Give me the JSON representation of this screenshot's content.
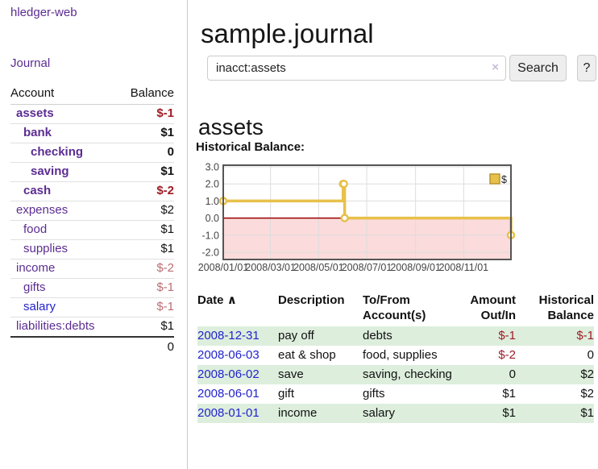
{
  "app": {
    "brand": "hledger-web"
  },
  "sidebar": {
    "journal_link": "Journal",
    "accounts_header": {
      "account": "Account",
      "balance": "Balance"
    },
    "accounts": [
      {
        "name": "assets",
        "indent": 1,
        "bold": true,
        "balance": "$-1",
        "balance_style": "neg-strong"
      },
      {
        "name": "bank",
        "indent": 2,
        "bold": true,
        "balance": "$1",
        "balance_style": "pos"
      },
      {
        "name": "checking",
        "indent": 3,
        "bold": true,
        "balance": "0",
        "balance_style": "pos"
      },
      {
        "name": "saving",
        "indent": 3,
        "bold": true,
        "balance": "$1",
        "balance_style": "pos"
      },
      {
        "name": "cash",
        "indent": 2,
        "bold": true,
        "balance": "$-2",
        "balance_style": "neg-strong"
      },
      {
        "name": "expenses",
        "indent": 1,
        "bold": false,
        "balance": "$2",
        "balance_style": "pos"
      },
      {
        "name": "food",
        "indent": 2,
        "bold": false,
        "balance": "$1",
        "balance_style": "pos"
      },
      {
        "name": "supplies",
        "indent": 2,
        "bold": false,
        "balance": "$1",
        "balance_style": "pos"
      },
      {
        "name": "income",
        "indent": 1,
        "bold": false,
        "balance": "$-2",
        "balance_style": "neg-soft"
      },
      {
        "name": "gifts",
        "indent": 2,
        "bold": false,
        "balance": "$-1",
        "balance_style": "neg-soft"
      },
      {
        "name": "salary",
        "indent": 2,
        "bold": false,
        "balance": "$-1",
        "balance_style": "neg-soft",
        "link_color": "blue"
      },
      {
        "name": "liabilities:debts",
        "indent": 1,
        "bold": false,
        "balance": "$1",
        "balance_style": "pos"
      }
    ],
    "total": "0"
  },
  "header": {
    "title": "sample.journal"
  },
  "search": {
    "value": "inacct:assets",
    "clear_icon": "×",
    "button_label": "Search",
    "help_label": "?"
  },
  "account_page": {
    "heading": "assets",
    "chart_label": "Historical Balance:"
  },
  "chart_data": {
    "type": "line",
    "title": "Historical Balance",
    "line_style": "step-after",
    "series": [
      {
        "name": "$",
        "x": [
          "2008-01-01",
          "2008-06-01",
          "2008-06-02",
          "2008-06-03",
          "2008-12-31"
        ],
        "values": [
          1,
          2,
          2,
          0,
          -1
        ]
      }
    ],
    "x_range": [
      "2008-01-01",
      "2008-12-31"
    ],
    "x_tick_labels": [
      "2008/01/01",
      "2008/03/01",
      "2008/05/01",
      "2008/07/01",
      "2008/09/01",
      "2008/11/01"
    ],
    "y_ticks": [
      "3.0",
      "2.0",
      "1.0",
      "0.0",
      "-1.0",
      "-2.0"
    ],
    "ylim": [
      -2,
      3
    ],
    "grid": true,
    "legend": "$",
    "legend_position": "top-right",
    "negative_region_shaded": true
  },
  "register_table": {
    "headers": [
      "Date",
      "Description",
      "To/From Account(s)",
      "Amount Out/In",
      "Historical Balance"
    ],
    "sort_icon": "∧",
    "rows": [
      {
        "date": "2008-12-31",
        "description": "pay off",
        "accounts": "debts",
        "amount": "$-1",
        "amount_neg": true,
        "balance": "$-1",
        "balance_neg": true,
        "stripe": true
      },
      {
        "date": "2008-06-03",
        "description": "eat & shop",
        "accounts": "food, supplies",
        "amount": "$-2",
        "amount_neg": true,
        "balance": "0",
        "balance_neg": false,
        "stripe": false
      },
      {
        "date": "2008-06-02",
        "description": "save",
        "accounts": "saving, checking",
        "amount": "0",
        "amount_neg": false,
        "balance": "$2",
        "balance_neg": false,
        "stripe": true
      },
      {
        "date": "2008-06-01",
        "description": "gift",
        "accounts": "gifts",
        "amount": "$1",
        "amount_neg": false,
        "balance": "$2",
        "balance_neg": false,
        "stripe": false
      },
      {
        "date": "2008-01-01",
        "description": "income",
        "accounts": "salary",
        "amount": "$1",
        "amount_neg": false,
        "balance": "$1",
        "balance_neg": false,
        "stripe": true
      }
    ]
  },
  "colors": {
    "link_purple": "#5c2d91",
    "link_blue": "#2323cc",
    "neg_strong": "#9e1c24",
    "neg_soft": "#bb6d72",
    "row_green": "#ddeedd",
    "chart_line_gold": "#e8c04a",
    "legend_gold_border": "#b89530",
    "negative_area_pink": "#fbdbdb",
    "zero_line_red": "#990000",
    "chart_border": "#555555",
    "grid_line": "#dddddd",
    "axis_text": "#444444"
  }
}
